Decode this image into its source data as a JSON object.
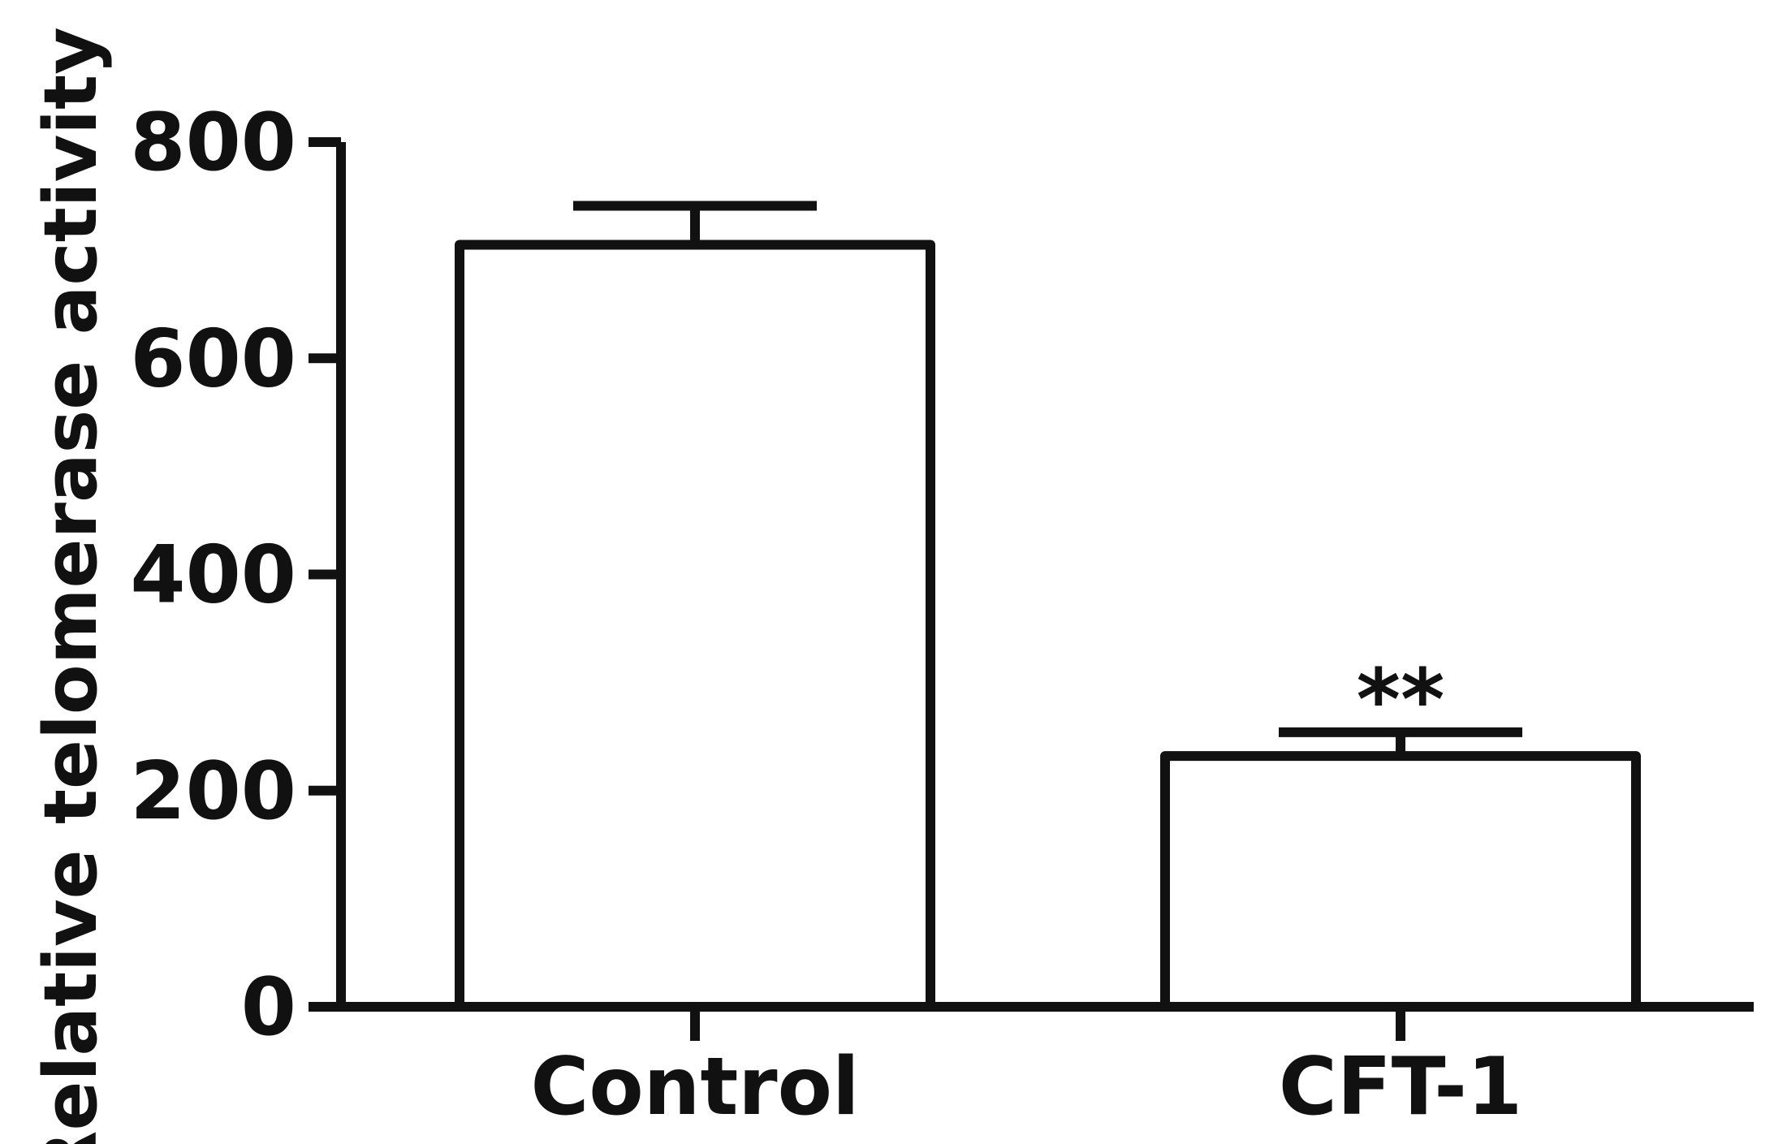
{
  "chart_data": {
    "type": "bar",
    "categories": [
      "Control",
      "CFT-1"
    ],
    "values": [
      705,
      232
    ],
    "errors": [
      36,
      22
    ],
    "annotations": [
      {
        "category": "CFT-1",
        "text": "**"
      }
    ],
    "title": "",
    "xlabel": "",
    "ylabel": "Relative telomerase activity",
    "ylim": [
      0,
      800
    ],
    "yticks": [
      0,
      200,
      400,
      600,
      800
    ],
    "grid": false,
    "legend": "none",
    "colors": {
      "bar_fill": "#ffffff",
      "stroke": "#111111"
    }
  }
}
